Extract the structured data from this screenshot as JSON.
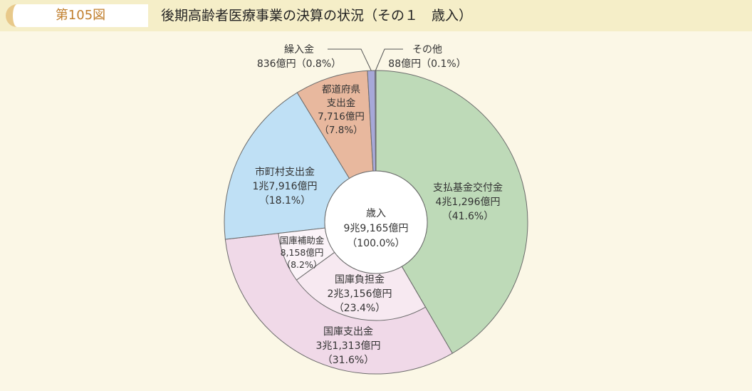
{
  "header": {
    "figure_number": "第105図",
    "title": "後期高齢者医療事業の決算の状況（その１　歳入）"
  },
  "chart_data": {
    "type": "pie",
    "center_label": [
      "歳入",
      "9兆9,165億円",
      "（100.0%）"
    ],
    "outer_ring": [
      {
        "id": "shiharai",
        "lines": [
          "支払基金交付金",
          "4兆1,296億円",
          "（41.6%）"
        ],
        "value": 41.6,
        "color": "#bedab8"
      },
      {
        "id": "kokko-shishutsu",
        "lines": [
          "国庫支出金",
          "3兆1,313億円",
          "（31.6%）"
        ],
        "value": 31.6,
        "color": "#f0d9e8"
      },
      {
        "id": "shichoson",
        "lines": [
          "市町村支出金",
          "1兆7,916億円",
          "（18.1%）"
        ],
        "value": 18.1,
        "color": "#bfe0f5"
      },
      {
        "id": "todofuken",
        "lines": [
          "都道府県",
          "支出金",
          "7,716億円",
          "（7.8%）"
        ],
        "value": 7.8,
        "color": "#e8b89e"
      },
      {
        "id": "kuriire",
        "lines": [
          "繰入金",
          "836億円（0.8%）"
        ],
        "value": 0.8,
        "color": "#a7a8d8"
      },
      {
        "id": "sonota",
        "lines": [
          "その他",
          "88億円（0.1%）"
        ],
        "value": 0.1,
        "color": "#6e79b5"
      }
    ],
    "inner_breakdown": {
      "parent": "kokko-shishutsu",
      "items": [
        {
          "id": "kokko-futan",
          "lines": [
            "国庫負担金",
            "2兆3,156億円",
            "（23.4%）"
          ],
          "value": 23.4,
          "color": "#f7e9f1"
        },
        {
          "id": "kokko-hojo",
          "lines": [
            "国庫補助金",
            "8,158億円",
            "（8.2%）"
          ],
          "value": 8.2,
          "color": "#fbf3f8"
        }
      ]
    }
  }
}
